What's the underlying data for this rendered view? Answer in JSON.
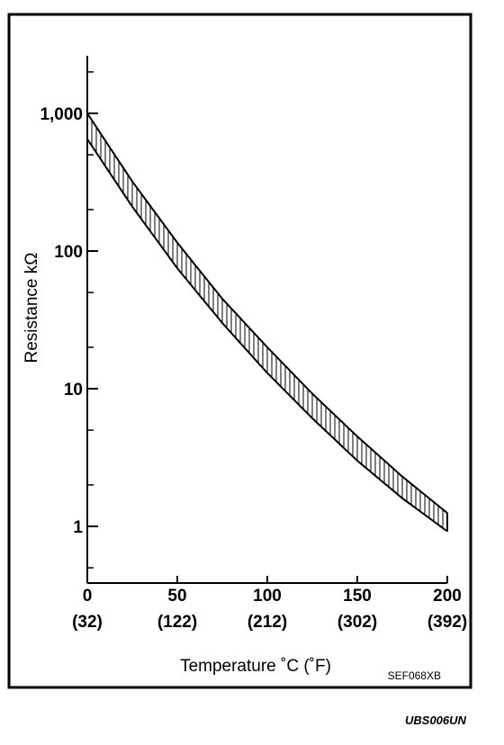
{
  "chart_data": {
    "type": "area",
    "xlabel": "Temperature ˚C  (˚F)",
    "ylabel": "Resistance kΩ",
    "figure_code": "SEF068XB",
    "y_scale": "log",
    "xlim": [
      0,
      200
    ],
    "ylim": [
      0.45,
      2500
    ],
    "x_ticks": [
      {
        "value": 0,
        "label": "0",
        "sublabel": "(32)"
      },
      {
        "value": 50,
        "label": "50",
        "sublabel": "(122)"
      },
      {
        "value": 100,
        "label": "100",
        "sublabel": "(212)"
      },
      {
        "value": 150,
        "label": "150",
        "sublabel": "(302)"
      },
      {
        "value": 200,
        "label": "200",
        "sublabel": "(392)"
      }
    ],
    "y_major_ticks": [
      {
        "value": 1,
        "label": "1"
      },
      {
        "value": 10,
        "label": "10"
      },
      {
        "value": 100,
        "label": "100"
      },
      {
        "value": 1000,
        "label": "1,000"
      }
    ],
    "y_minor_ticks": [
      0.5,
      2,
      5,
      20,
      50,
      200,
      500,
      2000
    ],
    "series": [
      {
        "role": "upper-bound",
        "x": [
          0,
          25,
          50,
          75,
          100,
          125,
          150,
          175,
          200
        ],
        "values": [
          1000,
          320,
          115,
          45,
          20,
          9.2,
          4.5,
          2.3,
          1.25
        ]
      },
      {
        "role": "lower-bound",
        "x": [
          0,
          25,
          50,
          75,
          100,
          125,
          150,
          175,
          200
        ],
        "values": [
          650,
          210,
          75,
          30,
          13,
          6.1,
          3.0,
          1.6,
          0.92
        ]
      }
    ],
    "fill_pattern": "vertical-hatch",
    "grid": false,
    "legend": "none"
  },
  "footer": {
    "code": "UBS006UN"
  }
}
